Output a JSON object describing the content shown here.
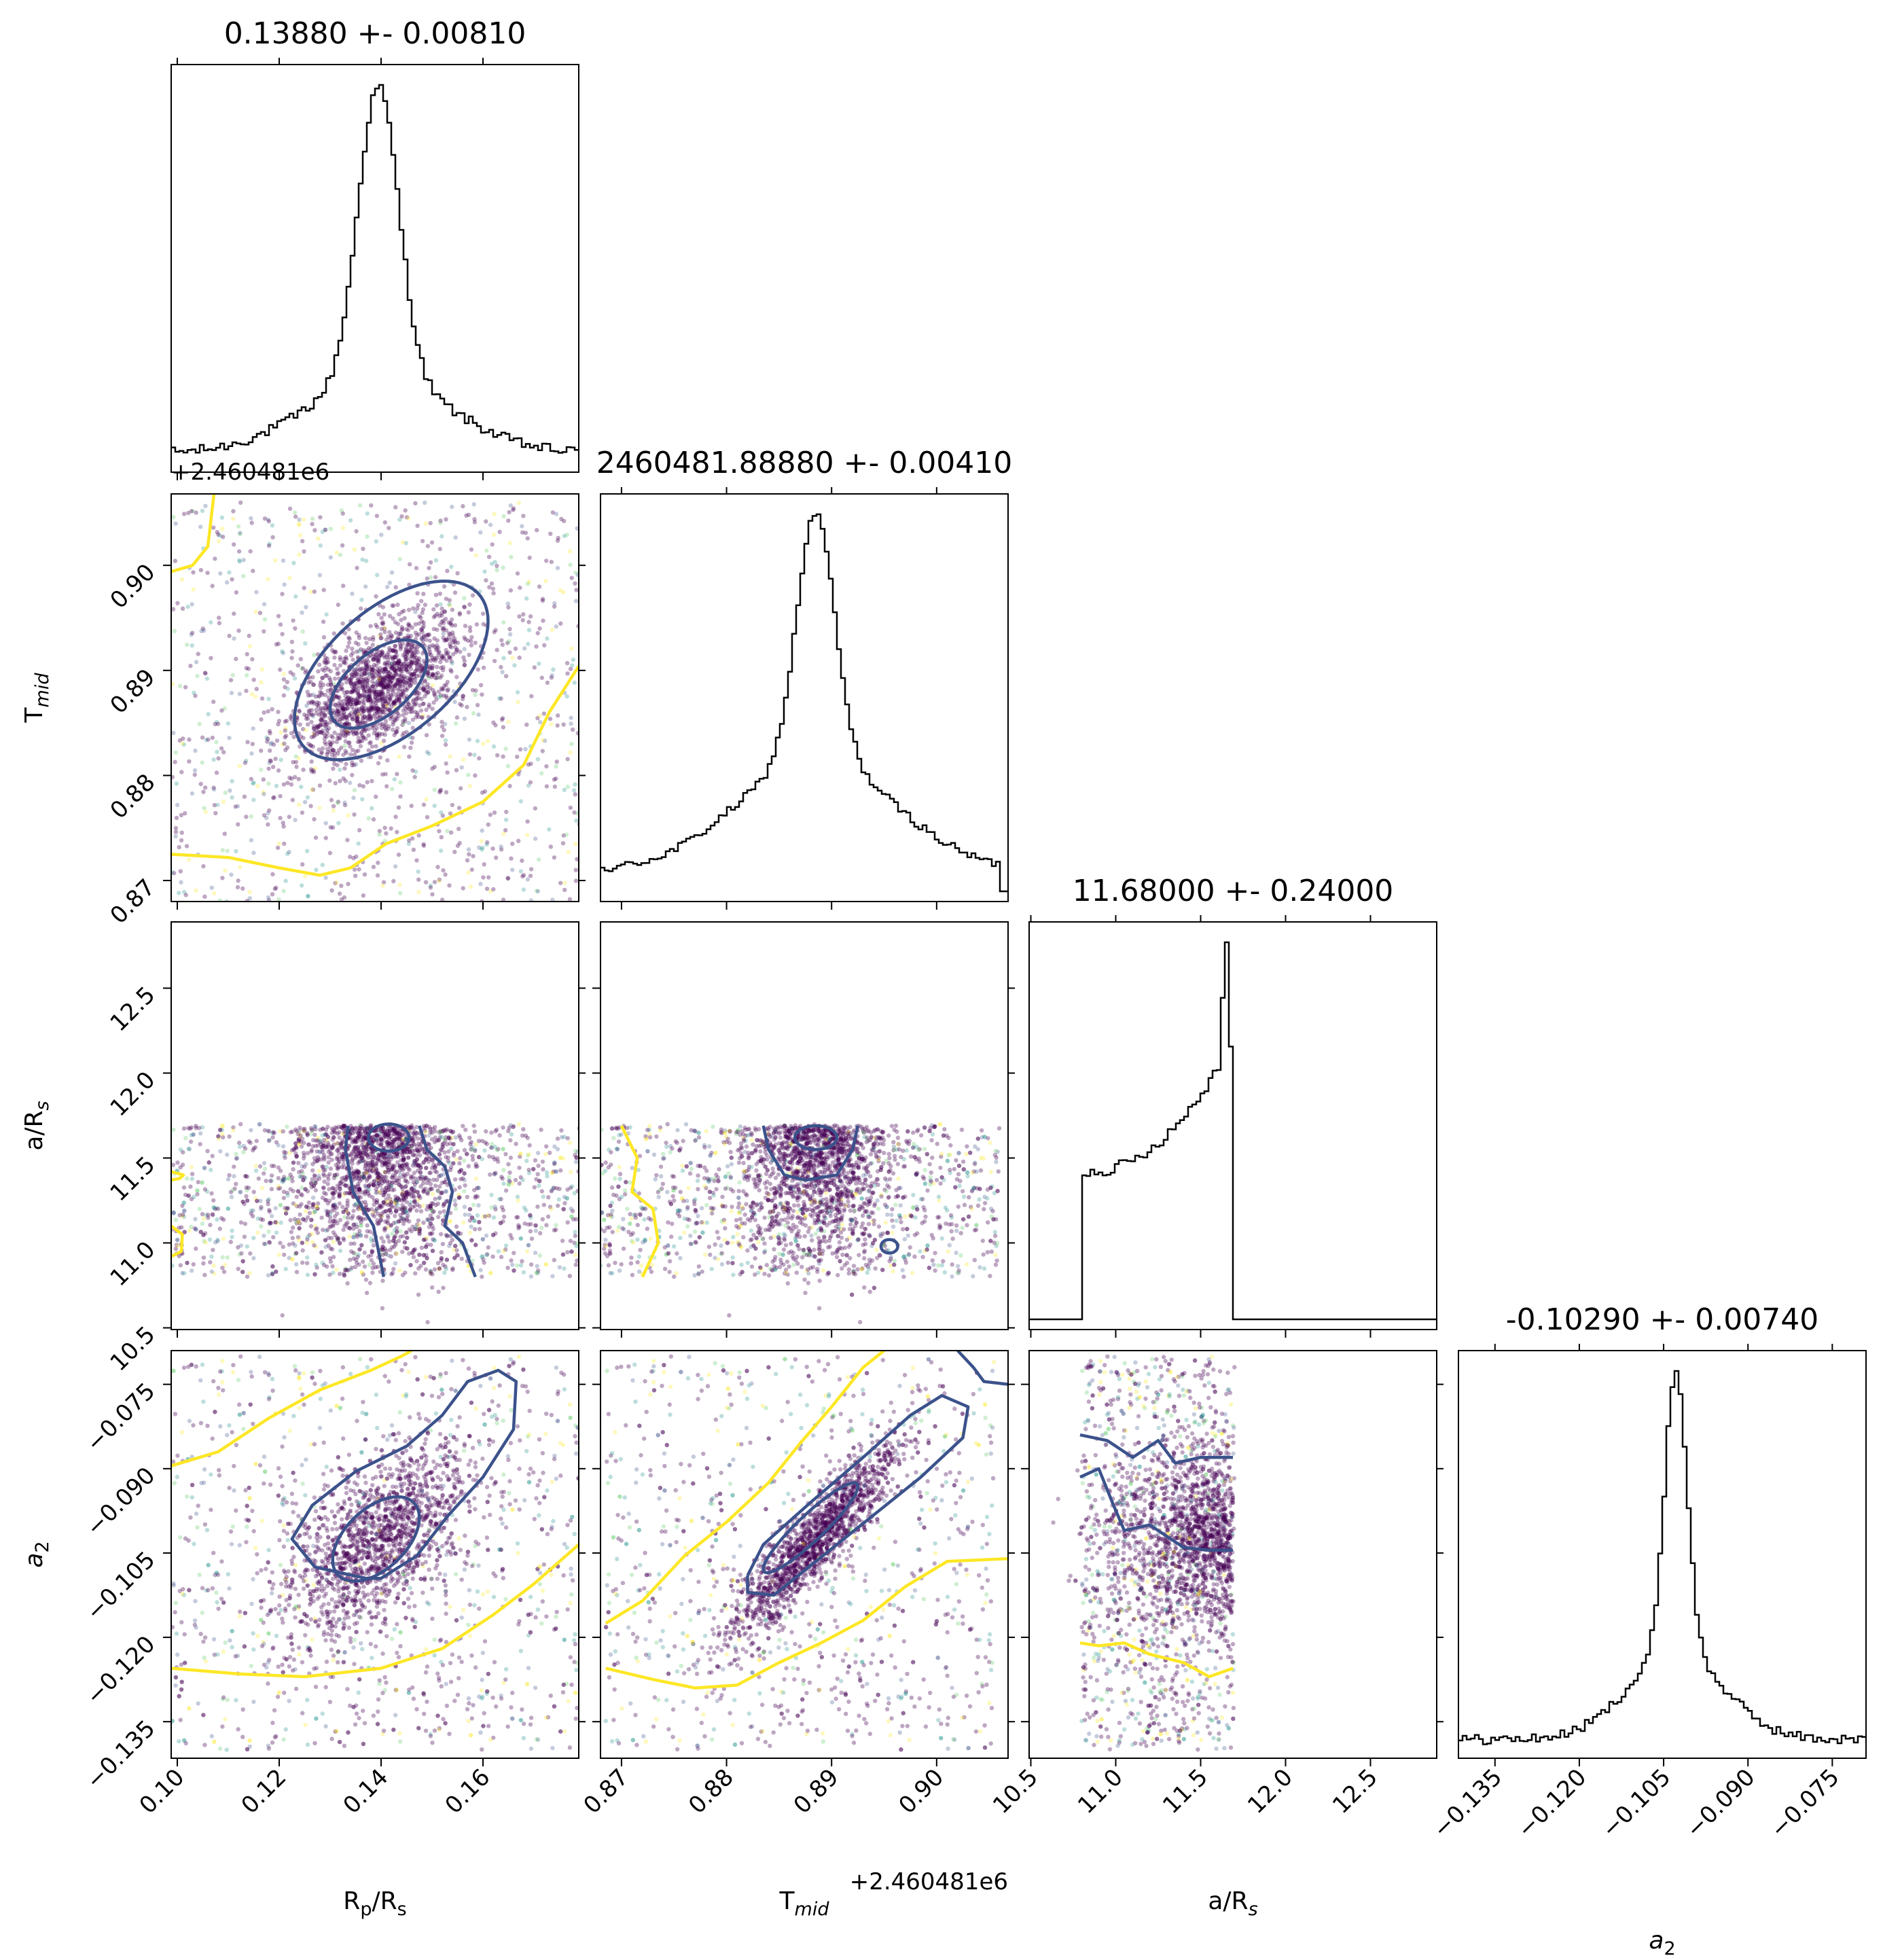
{
  "chart_data": {
    "type": "corner",
    "parameters": [
      {
        "key": "rp_rs",
        "label_main": "R",
        "label_sub": "p",
        "label_tail": "/R",
        "label_tail_sub": "s"
      },
      {
        "key": "t_mid",
        "label_main": "T",
        "label_sub": "mid",
        "label_tail": "",
        "label_tail_sub": ""
      },
      {
        "key": "a_rs",
        "label_main": "a/R",
        "label_sub": "s",
        "label_tail": "",
        "label_tail_sub": ""
      },
      {
        "key": "a2",
        "label_main": "a",
        "label_sub": "2",
        "label_tail": "",
        "label_tail_sub": ""
      }
    ],
    "titles": [
      "0.13880 +- 0.00810",
      "2460481.88880 +- 0.00410",
      "11.68000 +- 0.24000",
      "-0.10290 +- 0.00740"
    ],
    "ranges": [
      [
        0.0988,
        0.1788
      ],
      [
        0.868,
        0.9068
      ],
      [
        10.49,
        12.89
      ],
      [
        -0.1415,
        -0.069
      ]
    ],
    "ticks": [
      {
        "values": [
          0.1,
          0.12,
          0.14,
          0.16
        ],
        "labels": [
          "0.10",
          "0.12",
          "0.14",
          "0.16"
        ]
      },
      {
        "values": [
          0.87,
          0.88,
          0.89,
          0.9
        ],
        "labels": [
          "0.87",
          "0.88",
          "0.89",
          "0.90"
        ]
      },
      {
        "values": [
          10.5,
          11.0,
          11.5,
          12.0,
          12.5
        ],
        "labels": [
          "10.5",
          "11.0",
          "11.5",
          "12.0",
          "12.5"
        ]
      },
      {
        "values": [
          -0.135,
          -0.12,
          -0.105,
          -0.09,
          -0.075
        ],
        "labels": [
          "−0.135",
          "−0.120",
          "−0.105",
          "−0.090",
          "−0.075"
        ]
      }
    ],
    "offset_texts": {
      "t_mid_row": "+2.460481e6",
      "t_mid_col": "+2.460481e6"
    },
    "histograms": [
      {
        "param": "rp_rs",
        "peak": 0.1395,
        "width": 0.004,
        "tail_width": 0.014,
        "tail_frac": 0.25,
        "floor": 0.03
      },
      {
        "param": "t_mid",
        "peak": 0.8885,
        "width": 0.0018,
        "tail_width": 0.0075,
        "tail_frac": 0.45,
        "floor": 0.08,
        "cutoff": 0.906
      },
      {
        "param": "a_rs",
        "ramp_start": 10.8,
        "ramp_end": 11.69,
        "start_level": 0.39,
        "end_level": 0.74,
        "spike": 11.65,
        "spike_level": 1.0
      },
      {
        "param": "a2",
        "peak": -0.1028,
        "width": 0.002,
        "tail_width": 0.0085,
        "tail_frac": 0.3,
        "floor": 0.03
      }
    ],
    "colormap": [
      "#440154",
      "#3b528b",
      "#21918c",
      "#5ec962",
      "#fde725"
    ],
    "contour_colors": {
      "inner": "#3b528b",
      "outer": "#fde725"
    },
    "bin_count": 100,
    "grid": false,
    "legend": "none"
  }
}
